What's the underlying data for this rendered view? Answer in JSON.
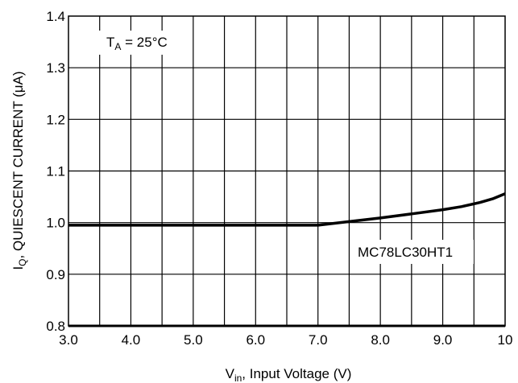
{
  "chart_data": {
    "type": "line",
    "xlabel": {
      "main": "V",
      "sub": "in",
      "rest": ", Input Voltage (V)"
    },
    "ylabel": {
      "main": "I",
      "sub": "Q",
      "rest": ", QUIESCENT CURRENT (μA)"
    },
    "xlim": [
      3.0,
      10.0
    ],
    "ylim": [
      0.8,
      1.4
    ],
    "x_ticks": [
      3.0,
      4.0,
      5.0,
      6.0,
      7.0,
      8.0,
      9.0,
      10.0
    ],
    "x_tick_labels": [
      "3.0",
      "4.0",
      "5.0",
      "6.0",
      "7.0",
      "8.0",
      "9.0",
      "10"
    ],
    "y_ticks": [
      0.8,
      0.9,
      1.0,
      1.1,
      1.2,
      1.3,
      1.4
    ],
    "y_tick_labels": [
      "0.8",
      "0.9",
      "1.0",
      "1.1",
      "1.2",
      "1.3",
      "1.4"
    ],
    "x_minor_step": 0.5,
    "grid": true,
    "annotations": {
      "condition": {
        "main": "T",
        "sub": "A",
        "rest": " = 25°C"
      },
      "series_label": "MC78LC30HT1"
    },
    "series": [
      {
        "name": "MC78LC30HT1",
        "x": [
          3.0,
          4.0,
          5.0,
          6.0,
          7.0,
          7.5,
          8.0,
          8.5,
          9.0,
          9.3,
          9.6,
          9.8,
          10.0
        ],
        "y": [
          0.995,
          0.995,
          0.995,
          0.995,
          0.995,
          1.002,
          1.009,
          1.017,
          1.025,
          1.031,
          1.039,
          1.046,
          1.056
        ]
      }
    ]
  }
}
